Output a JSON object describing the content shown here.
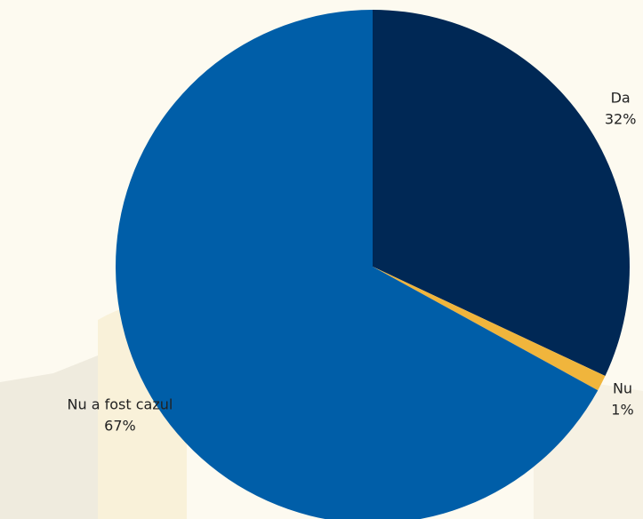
{
  "chart_data": {
    "type": "pie",
    "categories": [
      "Da",
      "Nu",
      "Nu a fost cazul"
    ],
    "values": [
      32,
      1,
      67
    ],
    "value_labels": [
      "32%",
      "1%",
      "67%"
    ],
    "colors": [
      "#002855",
      "#f0b53c",
      "#005ea8"
    ]
  }
}
